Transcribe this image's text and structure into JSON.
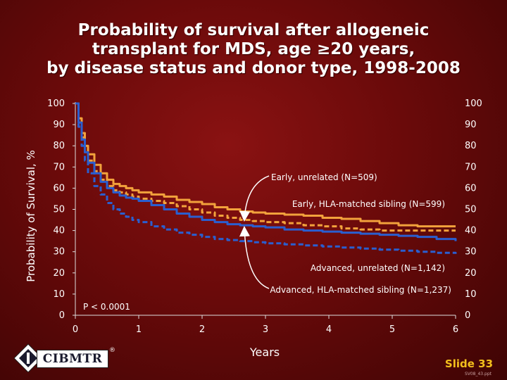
{
  "title_lines": [
    "Probability of survival after allogeneic",
    "transplant for MDS, age ≥20 years,",
    "by disease status and donor type, 1998-2008"
  ],
  "slide": {
    "label": "Slide 33",
    "code": "SV08_43.ppt"
  },
  "logo": {
    "text": "CIBMTR",
    "registered": "®"
  },
  "chart_data": {
    "type": "line",
    "title": "Probability of survival after allogeneic transplant for MDS, age ≥20 years, by disease status and donor type, 1998-2008",
    "xlabel": "Years",
    "ylabel": "Probability of Survival, %",
    "xlim": [
      0,
      6
    ],
    "ylim": [
      0,
      100
    ],
    "x_ticks": [
      0,
      1,
      2,
      3,
      4,
      5,
      6
    ],
    "y_ticks": [
      0,
      10,
      20,
      30,
      40,
      50,
      60,
      70,
      80,
      90,
      100
    ],
    "grid": false,
    "annotation": "P < 0.0001",
    "series": [
      {
        "name": "Early, unrelated (N=509)",
        "color": "#f2a23c",
        "dash": "solid",
        "points": [
          [
            0,
            100
          ],
          [
            0.05,
            93
          ],
          [
            0.1,
            86
          ],
          [
            0.15,
            80
          ],
          [
            0.2,
            76
          ],
          [
            0.3,
            71
          ],
          [
            0.4,
            67
          ],
          [
            0.5,
            64
          ],
          [
            0.6,
            62
          ],
          [
            0.7,
            61
          ],
          [
            0.8,
            60
          ],
          [
            0.9,
            59
          ],
          [
            1,
            58
          ],
          [
            1.2,
            57
          ],
          [
            1.4,
            56
          ],
          [
            1.6,
            54.5
          ],
          [
            1.8,
            53.5
          ],
          [
            2,
            52.5
          ],
          [
            2.2,
            51
          ],
          [
            2.4,
            50
          ],
          [
            2.6,
            49
          ],
          [
            2.8,
            48.5
          ],
          [
            3,
            48
          ],
          [
            3.3,
            47.5
          ],
          [
            3.6,
            47
          ],
          [
            3.9,
            46
          ],
          [
            4.2,
            45.5
          ],
          [
            4.5,
            44.5
          ],
          [
            4.8,
            43.5
          ],
          [
            5.1,
            42.5
          ],
          [
            5.4,
            42
          ],
          [
            5.7,
            42
          ],
          [
            6,
            42
          ]
        ]
      },
      {
        "name": "Early, HLA-matched sibling (N=599)",
        "color": "#f2a23c",
        "dash": "dashed",
        "points": [
          [
            0,
            100
          ],
          [
            0.05,
            92
          ],
          [
            0.1,
            84
          ],
          [
            0.15,
            77
          ],
          [
            0.2,
            73
          ],
          [
            0.3,
            68
          ],
          [
            0.4,
            64
          ],
          [
            0.5,
            61
          ],
          [
            0.6,
            59
          ],
          [
            0.7,
            58
          ],
          [
            0.8,
            57
          ],
          [
            0.9,
            56
          ],
          [
            1,
            55
          ],
          [
            1.2,
            54
          ],
          [
            1.4,
            53
          ],
          [
            1.6,
            51.5
          ],
          [
            1.8,
            50
          ],
          [
            2,
            48.5
          ],
          [
            2.2,
            47
          ],
          [
            2.4,
            46
          ],
          [
            2.6,
            45
          ],
          [
            2.8,
            44.5
          ],
          [
            3,
            44
          ],
          [
            3.3,
            43.5
          ],
          [
            3.6,
            42.5
          ],
          [
            3.9,
            42
          ],
          [
            4.2,
            41
          ],
          [
            4.5,
            40.5
          ],
          [
            4.8,
            40
          ],
          [
            5.1,
            40
          ],
          [
            5.4,
            40
          ],
          [
            5.7,
            40
          ],
          [
            6,
            40
          ]
        ]
      },
      {
        "name": "Advanced, HLA-matched sibling (N=1,237)",
        "color": "#2a5fd0",
        "dash": "solid",
        "points": [
          [
            0,
            100
          ],
          [
            0.05,
            91
          ],
          [
            0.1,
            83
          ],
          [
            0.15,
            77
          ],
          [
            0.2,
            72
          ],
          [
            0.3,
            67
          ],
          [
            0.4,
            63
          ],
          [
            0.5,
            60
          ],
          [
            0.6,
            58
          ],
          [
            0.7,
            56.5
          ],
          [
            0.8,
            55.5
          ],
          [
            0.9,
            55
          ],
          [
            1,
            54
          ],
          [
            1.2,
            52
          ],
          [
            1.4,
            50
          ],
          [
            1.6,
            48
          ],
          [
            1.8,
            46.5
          ],
          [
            2,
            45
          ],
          [
            2.2,
            44
          ],
          [
            2.4,
            43
          ],
          [
            2.6,
            42.5
          ],
          [
            2.8,
            42
          ],
          [
            3,
            41.5
          ],
          [
            3.3,
            40.5
          ],
          [
            3.6,
            40
          ],
          [
            3.9,
            39.5
          ],
          [
            4.2,
            39
          ],
          [
            4.5,
            38.5
          ],
          [
            4.8,
            38
          ],
          [
            5.1,
            37.5
          ],
          [
            5.4,
            37
          ],
          [
            5.7,
            36
          ],
          [
            6,
            35
          ]
        ]
      },
      {
        "name": "Advanced, unrelated (N=1,142)",
        "color": "#2a5fd0",
        "dash": "dashed",
        "points": [
          [
            0,
            100
          ],
          [
            0.05,
            89
          ],
          [
            0.1,
            80
          ],
          [
            0.15,
            73
          ],
          [
            0.2,
            67
          ],
          [
            0.3,
            61
          ],
          [
            0.4,
            57
          ],
          [
            0.5,
            53
          ],
          [
            0.6,
            50
          ],
          [
            0.7,
            48
          ],
          [
            0.8,
            46.5
          ],
          [
            0.9,
            45
          ],
          [
            1,
            44
          ],
          [
            1.2,
            42
          ],
          [
            1.4,
            40.5
          ],
          [
            1.6,
            39
          ],
          [
            1.8,
            38
          ],
          [
            2,
            37
          ],
          [
            2.2,
            36
          ],
          [
            2.4,
            35.5
          ],
          [
            2.6,
            35
          ],
          [
            2.8,
            34.5
          ],
          [
            3,
            34
          ],
          [
            3.3,
            33.5
          ],
          [
            3.6,
            33
          ],
          [
            3.9,
            32.5
          ],
          [
            4.2,
            32
          ],
          [
            4.5,
            31.5
          ],
          [
            4.8,
            31
          ],
          [
            5.1,
            30.5
          ],
          [
            5.4,
            30
          ],
          [
            5.7,
            29.5
          ],
          [
            6,
            29
          ]
        ]
      }
    ]
  }
}
